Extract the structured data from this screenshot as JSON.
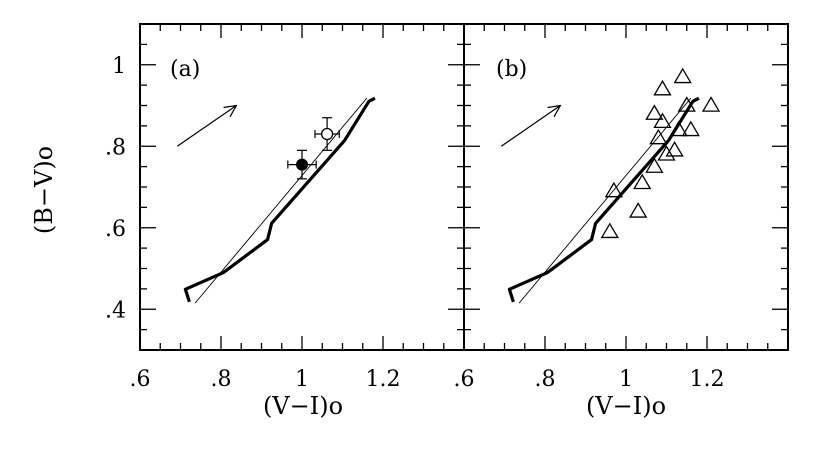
{
  "chart_data": [
    {
      "type": "line",
      "panel_label": "(a)",
      "xlabel": "(V−I)o",
      "ylabel": "(B−V)o",
      "xlim": [
        0.6,
        1.4
      ],
      "ylim": [
        0.3,
        1.1
      ],
      "x_tick_labels": [
        ".6",
        ".8",
        "1",
        "1.2"
      ],
      "y_tick_labels": [
        ".4",
        ".6",
        ".8",
        "1"
      ],
      "series": [
        {
          "style": "thick",
          "x": [
            0.722,
            0.712,
            0.806,
            0.915,
            0.925,
            1.105,
            1.165,
            1.18
          ],
          "y": [
            0.418,
            0.449,
            0.49,
            0.571,
            0.611,
            0.814,
            0.91,
            0.918
          ]
        },
        {
          "style": "thin",
          "x": [
            0.736,
            1.16
          ],
          "y": [
            0.415,
            0.918
          ]
        },
        {
          "style": "point-filled",
          "x": [
            1.0
          ],
          "y": [
            0.755
          ],
          "x_err": [
            0.035
          ],
          "y_err": [
            0.035
          ]
        },
        {
          "style": "point-open",
          "x": [
            1.062
          ],
          "y": [
            0.83
          ],
          "x_err": [
            0.03
          ],
          "y_err": [
            0.04
          ]
        }
      ],
      "vector": {
        "x": [
          0.692,
          0.838
        ],
        "y": [
          0.8,
          0.9
        ]
      }
    },
    {
      "type": "scatter",
      "panel_label": "(b)",
      "xlabel": "(V−I)o",
      "ylabel": "",
      "xlim": [
        0.6,
        1.4
      ],
      "ylim": [
        0.3,
        1.1
      ],
      "x_tick_labels": [
        ".6",
        ".8",
        "1",
        "1.2"
      ],
      "y_tick_labels": [],
      "series": [
        {
          "style": "thick",
          "x": [
            0.722,
            0.712,
            0.806,
            0.915,
            0.925,
            1.105,
            1.165,
            1.18
          ],
          "y": [
            0.418,
            0.449,
            0.49,
            0.571,
            0.611,
            0.814,
            0.91,
            0.918
          ]
        },
        {
          "style": "thin",
          "x": [
            0.736,
            1.16
          ],
          "y": [
            0.415,
            0.918
          ]
        },
        {
          "style": "triangles",
          "x": [
            0.96,
            0.97,
            1.03,
            1.04,
            1.07,
            1.07,
            1.08,
            1.09,
            1.09,
            1.1,
            1.12,
            1.13,
            1.14,
            1.15,
            1.16,
            1.21
          ],
          "y": [
            0.59,
            0.69,
            0.64,
            0.71,
            0.75,
            0.88,
            0.82,
            0.86,
            0.94,
            0.78,
            0.79,
            0.84,
            0.97,
            0.9,
            0.84,
            0.9
          ]
        }
      ],
      "vector": {
        "x": [
          0.692,
          0.838
        ],
        "y": [
          0.8,
          0.9
        ]
      }
    }
  ]
}
